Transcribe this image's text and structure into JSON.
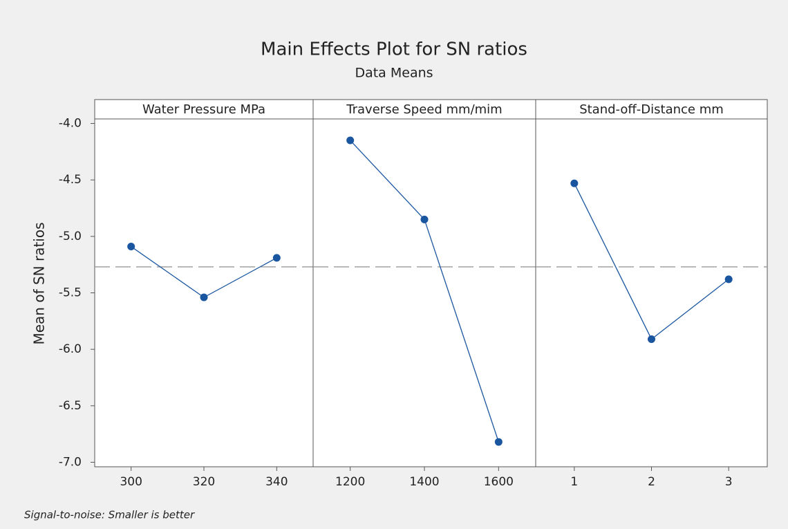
{
  "chart_data": {
    "type": "line",
    "title": "Main Effects Plot for SN ratios",
    "subtitle": "Data Means",
    "y_label": "Mean of SN ratios",
    "footnote": "Signal-to-noise: Smaller is better",
    "color": "#1a56a0",
    "reference_line": -5.27,
    "ylim": [
      -7.04,
      -3.96
    ],
    "yticks": [
      {
        "value": -4,
        "label": "-4.0"
      },
      -4.5,
      {
        "value": -5,
        "label": "-5.0"
      },
      -5.5,
      {
        "value": -6,
        "label": "-6.0"
      },
      -6.5,
      {
        "value": -7,
        "label": "-7.0"
      }
    ],
    "panels": [
      {
        "title": "Water Pressure MPa",
        "categories": [
          "300",
          "320",
          "340"
        ],
        "values": [
          -5.09,
          -5.54,
          -5.19
        ]
      },
      {
        "title": "Traverse Speed mm/mim",
        "categories": [
          "1200",
          "1400",
          "1600"
        ],
        "values": [
          -4.15,
          -4.85,
          -6.82
        ]
      },
      {
        "title": "Stand-off-Distance mm",
        "categories": [
          "1",
          "2",
          "3"
        ],
        "values": [
          -4.53,
          -5.91,
          -5.38
        ]
      }
    ]
  }
}
